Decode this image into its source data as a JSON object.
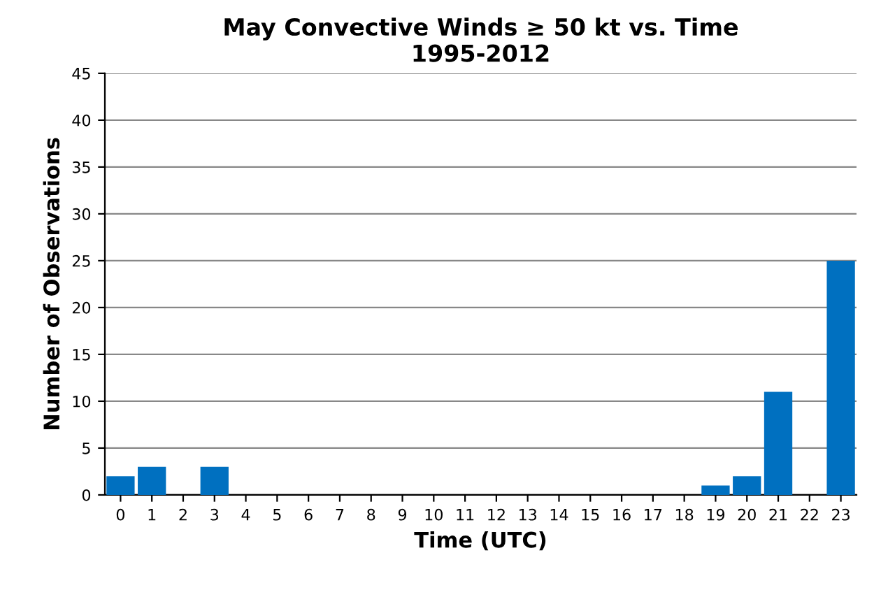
{
  "chart_data": {
    "type": "bar",
    "title": "May Convective Winds ≥ 50 kt vs. Time\n1995-2012",
    "xlabel": "Time (UTC)",
    "ylabel": "Number of Observations",
    "categories": [
      "0",
      "1",
      "2",
      "3",
      "4",
      "5",
      "6",
      "7",
      "8",
      "9",
      "10",
      "11",
      "12",
      "13",
      "14",
      "15",
      "16",
      "17",
      "18",
      "19",
      "20",
      "21",
      "22",
      "23"
    ],
    "values": [
      2,
      3,
      0,
      3,
      0,
      0,
      0,
      0,
      0,
      0,
      0,
      0,
      0,
      0,
      0,
      0,
      0,
      0,
      0,
      1,
      2,
      11,
      0,
      25
    ],
    "color": "#0070c0",
    "ylim": [
      0,
      45
    ],
    "yticks": [
      0,
      5,
      10,
      15,
      20,
      25,
      30,
      35,
      40,
      45
    ],
    "grid": "y",
    "legend": false
  }
}
